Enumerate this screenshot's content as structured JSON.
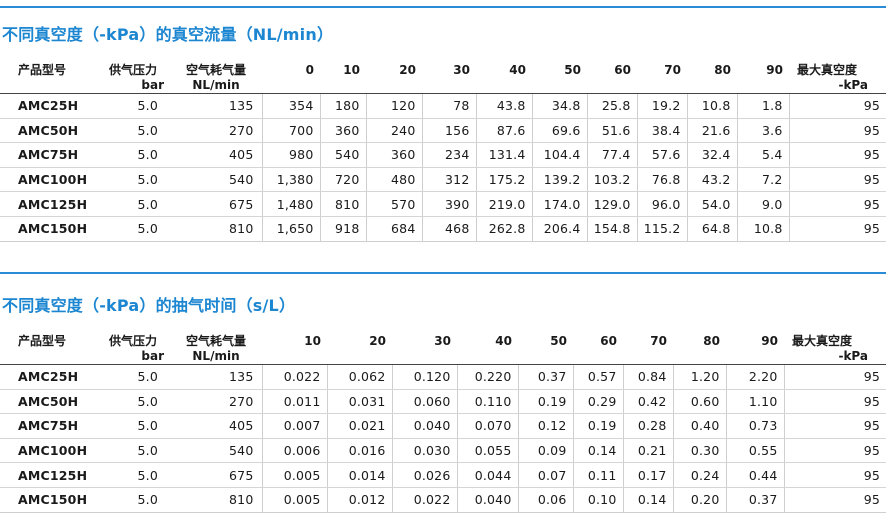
{
  "table1": {
    "title": "不同真空度（-kPa）的真空流量（NL/min）",
    "headers": {
      "model": "产品型号",
      "pressure_line1": "供气压力",
      "pressure_line2": "bar",
      "consume_line1": "空气耗气量",
      "consume_line2": "NL/min",
      "levels": [
        "0",
        "10",
        "20",
        "30",
        "40",
        "50",
        "60",
        "70",
        "80",
        "90"
      ],
      "max_line1": "最大真空度",
      "max_line2": "-kPa"
    },
    "rows": [
      {
        "model": "AMC25H",
        "pressure": "5.0",
        "consume": "135",
        "values": [
          "354",
          "180",
          "120",
          "78",
          "43.8",
          "34.8",
          "25.8",
          "19.2",
          "10.8",
          "1.8"
        ],
        "max": "95"
      },
      {
        "model": "AMC50H",
        "pressure": "5.0",
        "consume": "270",
        "values": [
          "700",
          "360",
          "240",
          "156",
          "87.6",
          "69.6",
          "51.6",
          "38.4",
          "21.6",
          "3.6"
        ],
        "max": "95"
      },
      {
        "model": "AMC75H",
        "pressure": "5.0",
        "consume": "405",
        "values": [
          "980",
          "540",
          "360",
          "234",
          "131.4",
          "104.4",
          "77.4",
          "57.6",
          "32.4",
          "5.4"
        ],
        "max": "95"
      },
      {
        "model": "AMC100H",
        "pressure": "5.0",
        "consume": "540",
        "values": [
          "1,380",
          "720",
          "480",
          "312",
          "175.2",
          "139.2",
          "103.2",
          "76.8",
          "43.2",
          "7.2"
        ],
        "max": "95"
      },
      {
        "model": "AMC125H",
        "pressure": "5.0",
        "consume": "675",
        "values": [
          "1,480",
          "810",
          "570",
          "390",
          "219.0",
          "174.0",
          "129.0",
          "96.0",
          "54.0",
          "9.0"
        ],
        "max": "95"
      },
      {
        "model": "AMC150H",
        "pressure": "5.0",
        "consume": "810",
        "values": [
          "1,650",
          "918",
          "684",
          "468",
          "262.8",
          "206.4",
          "154.8",
          "115.2",
          "64.8",
          "10.8"
        ],
        "max": "95"
      }
    ]
  },
  "table2": {
    "title": "不同真空度（-kPa）的抽气时间（s/L）",
    "headers": {
      "model": "产品型号",
      "pressure_line1": "供气压力",
      "pressure_line2": "bar",
      "consume_line1": "空气耗气量",
      "consume_line2": "NL/min",
      "levels": [
        "10",
        "20",
        "30",
        "40",
        "50",
        "60",
        "70",
        "80",
        "90"
      ],
      "max_line1": "最大真空度",
      "max_line2": "-kPa"
    },
    "rows": [
      {
        "model": "AMC25H",
        "pressure": "5.0",
        "consume": "135",
        "values": [
          "0.022",
          "0.062",
          "0.120",
          "0.220",
          "0.37",
          "0.57",
          "0.84",
          "1.20",
          "2.20"
        ],
        "max": "95"
      },
      {
        "model": "AMC50H",
        "pressure": "5.0",
        "consume": "270",
        "values": [
          "0.011",
          "0.031",
          "0.060",
          "0.110",
          "0.19",
          "0.29",
          "0.42",
          "0.60",
          "1.10"
        ],
        "max": "95"
      },
      {
        "model": "AMC75H",
        "pressure": "5.0",
        "consume": "405",
        "values": [
          "0.007",
          "0.021",
          "0.040",
          "0.070",
          "0.12",
          "0.19",
          "0.28",
          "0.40",
          "0.73"
        ],
        "max": "95"
      },
      {
        "model": "AMC100H",
        "pressure": "5.0",
        "consume": "540",
        "values": [
          "0.006",
          "0.016",
          "0.030",
          "0.055",
          "0.09",
          "0.14",
          "0.21",
          "0.30",
          "0.55"
        ],
        "max": "95"
      },
      {
        "model": "AMC125H",
        "pressure": "5.0",
        "consume": "675",
        "values": [
          "0.005",
          "0.014",
          "0.026",
          "0.044",
          "0.07",
          "0.11",
          "0.17",
          "0.24",
          "0.44"
        ],
        "max": "95"
      },
      {
        "model": "AMC150H",
        "pressure": "5.0",
        "consume": "810",
        "values": [
          "0.005",
          "0.012",
          "0.022",
          "0.040",
          "0.06",
          "0.10",
          "0.14",
          "0.20",
          "0.37"
        ],
        "max": "95"
      }
    ]
  },
  "colors": {
    "title": "#1c86d1",
    "rule": "#2a8bd6",
    "text": "#1a1a1a",
    "grid": "#cfcfcf"
  }
}
